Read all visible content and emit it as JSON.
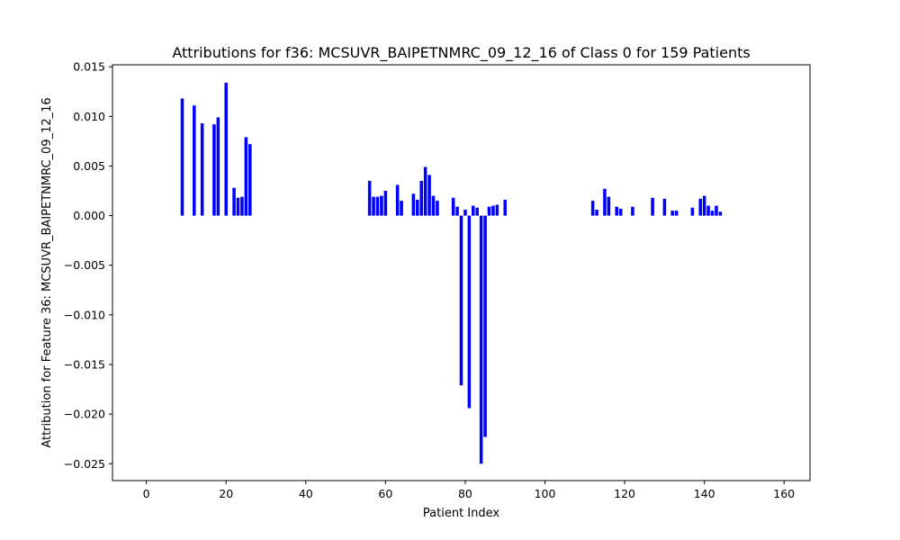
{
  "chart_data": {
    "type": "bar",
    "title": "Attributions for f36: MCSUVR_BAIPETNMRC_09_12_16 of Class 0 for 159 Patients",
    "xlabel": "Patient Index",
    "ylabel": "Attribution for Feature 36: MCSUVR_BAIPETNMRC_09_12_16",
    "bar_color": "#0000ff",
    "xlim": [
      -8.5,
      166.5
    ],
    "ylim": [
      -0.0267,
      0.0152
    ],
    "xticks": [
      0,
      20,
      40,
      60,
      80,
      100,
      120,
      140,
      160
    ],
    "xtick_labels": [
      "0",
      "20",
      "40",
      "60",
      "80",
      "100",
      "120",
      "140",
      "160"
    ],
    "yticks": [
      0.015,
      0.01,
      0.005,
      0.0,
      -0.005,
      -0.01,
      -0.015,
      -0.02,
      -0.025
    ],
    "ytick_labels": [
      "0.015",
      "0.010",
      "0.005",
      "0.000",
      "−0.005",
      "−0.010",
      "−0.015",
      "−0.020",
      "−0.025"
    ],
    "grid": false,
    "x": [
      9,
      12,
      14,
      17,
      18,
      20,
      22,
      23,
      24,
      25,
      26,
      56,
      57,
      58,
      59,
      60,
      63,
      64,
      67,
      68,
      69,
      70,
      71,
      72,
      73,
      77,
      78,
      79,
      80,
      81,
      82,
      83,
      84,
      85,
      86,
      87,
      88,
      90,
      112,
      113,
      115,
      116,
      118,
      119,
      122,
      127,
      130,
      132,
      133,
      137,
      139,
      140,
      141,
      142,
      143,
      144
    ],
    "values": [
      0.0118,
      0.0111,
      0.0093,
      0.0092,
      0.0099,
      0.0134,
      0.0028,
      0.0018,
      0.0019,
      0.0079,
      0.0072,
      0.0035,
      0.0019,
      0.0019,
      0.002,
      0.0025,
      0.0031,
      0.0015,
      0.0022,
      0.0016,
      0.0035,
      0.0049,
      0.0041,
      0.002,
      0.0015,
      0.0018,
      0.0009,
      -0.0171,
      0.0006,
      -0.0194,
      0.001,
      0.0008,
      -0.025,
      -0.0223,
      0.0009,
      0.001,
      0.0011,
      0.0016,
      0.0015,
      0.0006,
      0.0027,
      0.0019,
      0.0009,
      0.0007,
      0.0009,
      0.0018,
      0.0017,
      0.0005,
      0.0005,
      0.0008,
      0.0017,
      0.002,
      0.001,
      0.0005,
      0.001,
      0.0004
    ]
  }
}
